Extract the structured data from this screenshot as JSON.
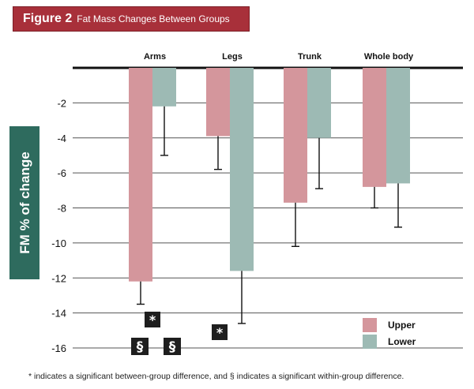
{
  "figure": {
    "label": "Figure 2",
    "title": "Fat Mass Changes Between Groups"
  },
  "footnote": "* indicates a significant between-group difference, and § indicates a significant within-group difference.",
  "chart_data": {
    "type": "bar",
    "title": "Figure 2 Fat Mass Changes Between Groups",
    "xlabel": "",
    "ylabel": "FM % of change",
    "categories": [
      "Arms",
      "Legs",
      "Trunk",
      "Whole body"
    ],
    "series": [
      {
        "name": "Upper",
        "color": "#d4969c",
        "values": [
          -12.2,
          -3.9,
          -7.7,
          -6.8
        ],
        "errors": [
          1.3,
          1.9,
          2.5,
          1.2
        ]
      },
      {
        "name": "Lower",
        "color": "#9dbab4",
        "values": [
          -2.2,
          -11.6,
          -4.0,
          -6.6
        ],
        "errors": [
          2.8,
          3.0,
          2.9,
          2.5
        ]
      }
    ],
    "ylim": [
      -16,
      0
    ],
    "yticks": [
      -2,
      -4,
      -6,
      -8,
      -10,
      -12,
      -14,
      -16
    ],
    "grid": true,
    "legend_position": "bottom-right",
    "annotations": [
      {
        "category": "Arms",
        "series": "Upper",
        "symbols": [
          "*",
          "§"
        ]
      },
      {
        "category": "Arms",
        "series": "Lower",
        "symbols": [
          "§"
        ]
      },
      {
        "category": "Legs",
        "series": "Upper",
        "symbols": [
          "*"
        ]
      }
    ],
    "ylabel_box_color": "#2e6b5e"
  }
}
